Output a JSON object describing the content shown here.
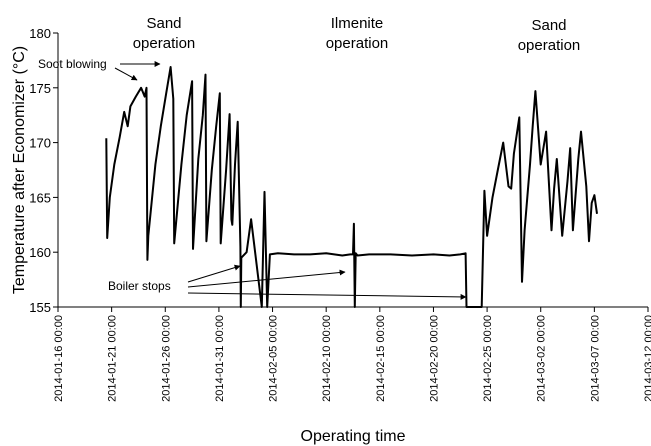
{
  "chart_data": {
    "type": "line",
    "xlabel": "Operating time",
    "ylabel": "Temperature after Economizer (°C)",
    "ylim": [
      155,
      180
    ],
    "yticks": [
      155,
      160,
      165,
      170,
      175,
      180
    ],
    "xlim": [
      "2014-01-16 00:00",
      "2014-03-12 00:00"
    ],
    "xticks": [
      "2014-01-16 00:00",
      "2014-01-21 00:00",
      "2014-01-26 00:00",
      "2014-01-31 00:00",
      "2014-02-05 00:00",
      "2014-02-10 00:00",
      "2014-02-15 00:00",
      "2014-02-20 00:00",
      "2014-02-25 00:00",
      "2014-03-02 00:00",
      "2014-03-07 00:00",
      "2014-03-12 00:00"
    ],
    "grid": false,
    "line_color": "#000000",
    "annotations": {
      "sand_operation_1": [
        "Sand",
        "operation"
      ],
      "ilmenite_operation": [
        "Ilmenite",
        "operation"
      ],
      "sand_operation_2": [
        "Sand",
        "operation"
      ],
      "soot_blowing": "Soot blowing",
      "boiler_stops": "Boiler stops"
    },
    "series": [
      {
        "x": [
          "2014-01-20 12:00",
          "2014-01-20 14:00",
          "2014-01-20 20:00",
          "2014-01-21 06:00",
          "2014-01-21 18:00",
          "2014-01-22 04:00",
          "2014-01-22 12:00",
          "2014-01-22 18:00",
          "2014-01-23 06:00",
          "2014-01-23 18:00",
          "2014-01-24 02:00",
          "2014-01-24 06:00",
          "2014-01-24 08:00",
          "2014-01-24 10:00",
          "2014-01-25 02:00",
          "2014-01-25 14:00",
          "2014-01-26 02:00",
          "2014-01-26 12:00",
          "2014-01-26 18:00",
          "2014-01-26 20:00",
          "2014-01-27 12:00",
          "2014-01-28 00:00",
          "2014-01-28 12:00",
          "2014-01-28 14:00",
          "2014-01-29 02:00",
          "2014-01-29 12:00",
          "2014-01-29 18:00",
          "2014-01-29 20:00",
          "2014-01-30 08:00",
          "2014-01-30 18:00",
          "2014-01-31 02:00",
          "2014-01-31 04:00",
          "2014-01-31 16:00",
          "2014-02-01 00:00",
          "2014-02-01 04:00",
          "2014-02-01 06:00",
          "2014-02-01 12:00",
          "2014-02-01 18:00",
          "2014-02-02 00:00",
          "2014-02-02 01:00",
          "2014-02-02 02:00",
          "2014-02-02 14:00",
          "2014-02-03 00:00",
          "2014-02-04 00:00",
          "2014-02-04 06:00",
          "2014-02-04 12:00",
          "2014-02-04 18:00",
          "2014-02-05 12:00",
          "2014-02-07 00:00",
          "2014-02-08 12:00",
          "2014-02-10 00:00",
          "2014-02-11 12:00",
          "2014-02-12 06:00",
          "2014-02-12 12:00",
          "2014-02-12 14:00",
          "2014-02-12 16:00",
          "2014-02-12 18:00",
          "2014-02-12 20:00",
          "2014-02-12 22:00",
          "2014-02-14 00:00",
          "2014-02-16 00:00",
          "2014-02-18 00:00",
          "2014-02-20 00:00",
          "2014-02-21 12:00",
          "2014-02-22 12:00",
          "2014-02-23 00:00",
          "2014-02-23 02:00",
          "2014-02-24 12:00",
          "2014-02-24 18:00",
          "2014-02-25 00:00",
          "2014-02-25 12:00",
          "2014-02-26 00:00",
          "2014-02-26 12:00",
          "2014-02-27 00:00",
          "2014-02-27 06:00",
          "2014-02-27 12:00",
          "2014-02-28 00:00",
          "2014-02-28 06:00",
          "2014-02-28 12:00",
          "2014-03-01 00:00",
          "2014-03-01 06:00",
          "2014-03-01 12:00",
          "2014-03-02 00:00",
          "2014-03-02 12:00",
          "2014-03-03 00:00",
          "2014-03-03 06:00",
          "2014-03-03 12:00",
          "2014-03-04 00:00",
          "2014-03-04 12:00",
          "2014-03-04 18:00",
          "2014-03-05 00:00",
          "2014-03-05 12:00",
          "2014-03-05 18:00",
          "2014-03-06 06:00",
          "2014-03-06 12:00",
          "2014-03-06 18:00",
          "2014-03-07 00:00",
          "2014-03-07 06:00"
        ],
        "y": [
          170.4,
          161.3,
          165.0,
          168.0,
          170.5,
          172.8,
          171.5,
          173.3,
          174.2,
          175.0,
          174.2,
          175.0,
          159.3,
          161.5,
          168.0,
          171.5,
          174.5,
          176.9,
          174.0,
          160.8,
          168.0,
          172.5,
          175.6,
          160.3,
          168.5,
          172.5,
          176.2,
          161.0,
          167.5,
          171.5,
          174.5,
          160.8,
          167.5,
          172.6,
          163.0,
          162.5,
          168.0,
          171.9,
          160.5,
          155.0,
          159.5,
          160.0,
          163.0,
          155.0,
          165.5,
          155.0,
          159.8,
          159.9,
          159.8,
          159.8,
          159.9,
          159.7,
          159.8,
          159.8,
          162.6,
          155.0,
          159.9,
          159.8,
          159.7,
          159.8,
          159.8,
          159.7,
          159.8,
          159.7,
          159.8,
          159.9,
          155.0,
          155.0,
          165.6,
          161.5,
          165.0,
          167.5,
          170.0,
          166.0,
          165.8,
          169.0,
          172.3,
          157.3,
          162.0,
          168.0,
          171.5,
          174.7,
          168.0,
          171.0,
          162.0,
          165.8,
          168.5,
          161.5,
          166.5,
          169.5,
          162.0,
          168.5,
          171.0,
          166.0,
          161.0,
          164.5,
          165.2,
          163.5
        ]
      }
    ]
  }
}
